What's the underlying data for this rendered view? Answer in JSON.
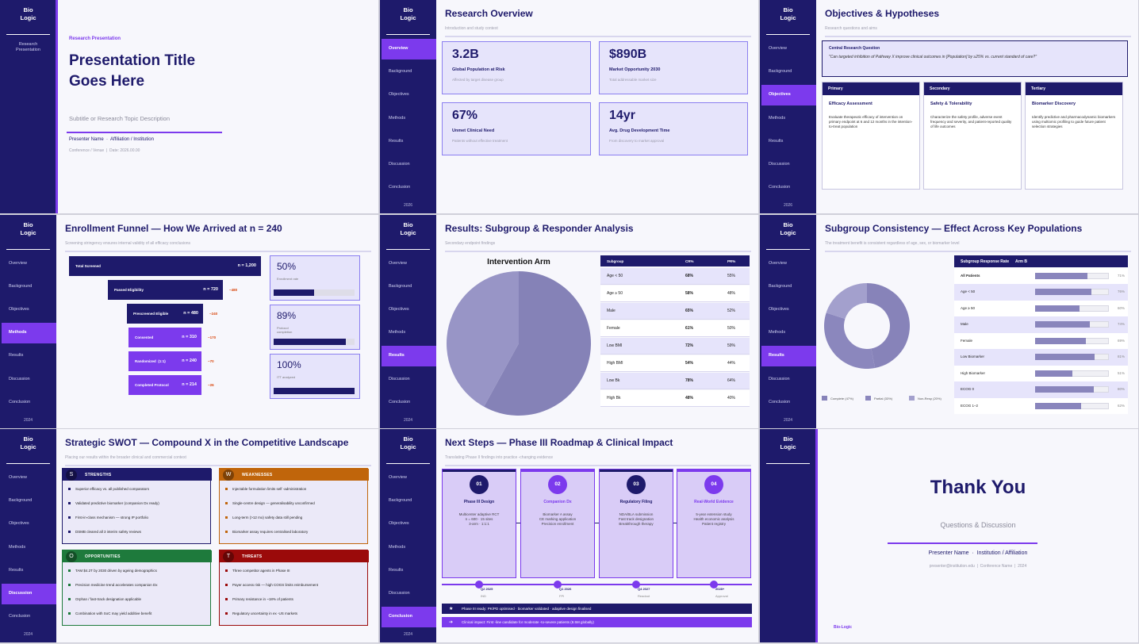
{
  "brand": {
    "logo_top": "Bio",
    "logo_bottom": "Logic"
  },
  "nav": [
    "Overview",
    "Background",
    "Objectives",
    "Methods",
    "Results",
    "Discussion",
    "Conclusion"
  ],
  "slides": [
    {
      "kind": "title",
      "sidebar_note": "Research Presentation",
      "eyebrow": "Research Presentation",
      "title_lines": [
        "Presentation Title",
        "Goes Here"
      ],
      "subtitle": "Subtitle or Research Topic Description",
      "presenter": "Presenter Name  ·  Affiliation / Institution",
      "meta": "Conference / Venue  |  Date: 2026.00.00"
    },
    {
      "kind": "overview",
      "title": "Research Overview",
      "subtitle": "Introduction and study context",
      "active": 0,
      "year": "2026",
      "stats": [
        {
          "value": "3.2B",
          "label": "Global Population at Risk",
          "note": "Affected by target disease group"
        },
        {
          "value": "$890B",
          "label": "Market Opportunity 2030",
          "note": "Total addressable market size"
        },
        {
          "value": "67%",
          "label": "Unmet Clinical Need",
          "note": "Patients without effective treatment"
        },
        {
          "value": "14yr",
          "label": "Avg. Drug Development Time",
          "note": "From discovery to market approval"
        }
      ]
    },
    {
      "kind": "objectives",
      "title": "Objectives & Hypotheses",
      "subtitle": "Research questions and aims",
      "active": 2,
      "year": "2026",
      "question_label": "Central Research Question",
      "question": "\"Can targeted inhibition of Pathway X improve clinical outcomes in [Population] by ≥25% vs. current standard of care?\"",
      "cards": [
        {
          "tag": "Primary",
          "title": "Efficacy Assessment",
          "text": "Evaluate therapeutic efficacy of intervention on primary endpoint at 6 and 12 months in the intention-to-treat population"
        },
        {
          "tag": "Secondary",
          "title": "Safety & Tolerability",
          "text": "Characterize the safety profile, adverse event frequency and severity, and patient-reported quality of life outcomes"
        },
        {
          "tag": "Tertiary",
          "title": "Biomarker Discovery",
          "text": "Identify predictive and pharmacodynamic biomarkers using multiomic profiling to guide future patient selection strategies"
        }
      ]
    },
    {
      "kind": "funnel",
      "title": "Enrollment Funnel — How We Arrived at n = 240",
      "subtitle": "Screening stringency ensures internal validity of all efficacy conclusions",
      "active": 3,
      "year": "2024",
      "stages": [
        {
          "label": "Total Screened",
          "n": "n = 1,200"
        },
        {
          "label": "Passed Eligibility",
          "n": "n = 720",
          "drop": "−480"
        },
        {
          "label": "Prescreened Eligible",
          "n": "n = 480",
          "drop": "−240"
        },
        {
          "label": "Consented",
          "n": "n = 310",
          "drop": "−170"
        },
        {
          "label": "Randomized  (1:1)",
          "n": "n = 240",
          "drop": "−70"
        },
        {
          "label": "Completed Protocol",
          "n": "n = 214",
          "drop": "−26"
        }
      ],
      "xlim": [
        0,
        100
      ],
      "kpis": [
        {
          "value": {
            "value": 50,
            "label": "50%"
          },
          "label": "Enrollment rate"
        },
        {
          "value": {
            "value": 89,
            "label": "89%"
          },
          "label": "Protocol completion"
        },
        {
          "value": {
            "value": 100,
            "label": "100%"
          },
          "label": "ITT analyzed"
        }
      ]
    },
    {
      "kind": "results",
      "title": "Results: Subgroup & Responder Analysis",
      "subtitle": "Secondary endpoint findings",
      "active": 4,
      "year": "2024",
      "pie": {
        "title": "Intervention Arm",
        "values": [
          58,
          42
        ],
        "colors": [
          "#8582b7",
          "#9895c6"
        ]
      },
      "table": {
        "header": [
          "Subgroup",
          "CR%",
          "PR%"
        ],
        "rows": [
          [
            "Age < 50",
            "68%",
            "55%"
          ],
          [
            "Age ≥ 50",
            "58%",
            "48%"
          ],
          [
            "Male",
            "65%",
            "52%"
          ],
          [
            "Female",
            "61%",
            "50%"
          ],
          [
            "Low BMI",
            "72%",
            "59%"
          ],
          [
            "High BMI",
            "54%",
            "44%"
          ],
          [
            "Low Bk",
            "78%",
            "64%"
          ],
          [
            "High Bk",
            "48%",
            "40%"
          ]
        ]
      }
    },
    {
      "kind": "consistency",
      "title": "Subgroup Consistency — Effect Across Key Populations",
      "subtitle": "The treatment benefit is consistent regardless of age, sex, or biomarker level",
      "active": 4,
      "year": "2024",
      "donut": {
        "values": [
          47,
          33,
          20
        ],
        "labels": [
          "Complete (47%)",
          "Partial (33%)",
          "Non-Resp (20%)"
        ],
        "colors": [
          "#8783b9",
          "#8b87bd",
          "#a3a0cd"
        ]
      },
      "bars": {
        "title": "Subgroup Response Rate",
        "subtitle": "Arm B",
        "xlim": [
          0,
          100
        ],
        "rows": [
          {
            "name": "All Patients",
            "value": {
              "value": 71,
              "label": "71%"
            }
          },
          {
            "name": "Age < 50",
            "value": {
              "value": 76,
              "label": "76%"
            }
          },
          {
            "name": "Age ≥ 50",
            "value": {
              "value": 60,
              "label": "60%"
            }
          },
          {
            "name": "Male",
            "value": {
              "value": 74,
              "label": "74%"
            }
          },
          {
            "name": "Female",
            "value": {
              "value": 69,
              "label": "69%"
            }
          },
          {
            "name": "Low Biomarker",
            "value": {
              "value": 81,
              "label": "81%"
            }
          },
          {
            "name": "High Biomarker",
            "value": {
              "value": 51,
              "label": "51%"
            }
          },
          {
            "name": "ECOG 0",
            "value": {
              "value": 80,
              "label": "80%"
            }
          },
          {
            "name": "ECOG 1–2",
            "value": {
              "value": 62,
              "label": "62%"
            }
          }
        ]
      }
    },
    {
      "kind": "swot",
      "title": "Strategic SWOT — Compound X in the Competitive Landscape",
      "subtitle": "Placing our results within the broader clinical and commercial context",
      "active": 5,
      "year": "2024",
      "quadrants": [
        {
          "letter": "S",
          "title": "STRENGTHS",
          "color": "#1e1a6b",
          "items": [
            "Superior efficacy vs. all published comparators",
            "Validated predictive biomarker (companion Dx ready)",
            "First-in-class mechanism — strong IP portfolio",
            "DSMB cleared all 3 interim safety reviews"
          ]
        },
        {
          "letter": "W",
          "title": "WEAKNESSES",
          "color": "#c0650b",
          "items": [
            "Injectable formulation limits self -administration",
            "Single-centre design — generalisability unconfirmed",
            "Long-term (>12 mo) safety data still pending",
            "Biomarker assay requires centralised laboratory"
          ]
        },
        {
          "letter": "O",
          "title": "OPPORTUNITIES",
          "color": "#1e7a3c",
          "items": [
            "TAM $4.2T by 2030 driven by ageing demographics",
            "Precision medicine trend accelerates companion Dx",
            "Orphan / fast-track designation applicable",
            "Combination with SoC may yield additive benefit"
          ]
        },
        {
          "letter": "T",
          "title": "THREATS",
          "color": "#9b0a0a",
          "items": [
            "Three competitor agents in Phase III",
            "Payer access risk — high COGS limits reimbursement",
            "Primary resistance in ~18% of patients",
            "Regulatory uncertainty in ex -US markets"
          ]
        }
      ]
    },
    {
      "kind": "roadmap",
      "title": "Next Steps — Phase III Roadmap & Clinical Impact",
      "subtitle": "Translating Phase II findings into practice -changing evidence",
      "active": 6,
      "year": "2024",
      "steps": [
        {
          "num": "01",
          "title": "Phase III Design",
          "lines": [
            "Multicenter adaptive RCT",
            "n = 600 · 15 sites",
            "3-arm · 1:1:1"
          ],
          "date": "Q2 2025",
          "milestone": "IND"
        },
        {
          "num": "02",
          "title": "Companion Dx",
          "lines": [
            "Biomarker A assay",
            "CE marking application",
            "Precision enrollment"
          ],
          "date": "Q1 2026",
          "milestone": "FPI"
        },
        {
          "num": "03",
          "title": "Regulatory Filing",
          "lines": [
            "NDA/BLA submission",
            "Fast track designation",
            "Breakthrough therapy"
          ],
          "date": "Q4 2027",
          "milestone": "Readout"
        },
        {
          "num": "04",
          "title": "Real-World Evidence",
          "lines": [
            "5-year extension study",
            "Health economic analysis",
            "Patient registry"
          ],
          "date": "2028+",
          "milestone": "Approval"
        }
      ],
      "notes": [
        "Phase III ready: PK/PD optimised · biomarker validated · adaptive design finalised",
        "Clinical impact: First -line candidate for moderate -to-severe patients (8.5M globally)"
      ]
    },
    {
      "kind": "thanks",
      "title": "Thank You",
      "subtitle": "Questions & Discussion",
      "presenter": "Presenter Name  ·  Institution / Affiliation",
      "contact": "presenter@institution.edu  |  Conference Name  |  2024",
      "brand": "Bio-Logic"
    }
  ]
}
